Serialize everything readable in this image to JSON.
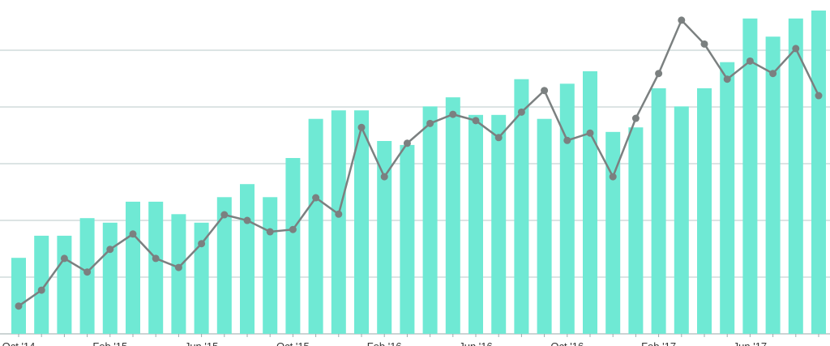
{
  "chart_data": {
    "type": "bar-line",
    "categories": [
      "Oct '14",
      null,
      null,
      null,
      "Feb '15",
      null,
      null,
      null,
      "Jun '15",
      null,
      null,
      null,
      "Oct '15",
      null,
      null,
      null,
      "Feb '16",
      null,
      null,
      null,
      "Jun '16",
      null,
      null,
      null,
      "Oct '16",
      null,
      null,
      null,
      "Feb '17",
      null,
      null,
      null,
      "Jun '17",
      null,
      null,
      null
    ],
    "series": [
      {
        "type": "bar",
        "color": "#6fe9d4",
        "values": [
          1.34,
          1.73,
          1.73,
          2.04,
          1.96,
          2.33,
          2.33,
          2.11,
          1.96,
          2.41,
          2.64,
          2.41,
          3.1,
          3.79,
          3.94,
          3.94,
          3.4,
          3.33,
          4.01,
          4.17,
          3.86,
          3.86,
          4.49,
          3.79,
          4.41,
          4.63,
          3.56,
          3.64,
          4.33,
          4.01,
          4.33,
          4.79,
          5.56,
          5.24,
          5.56,
          5.7
        ]
      },
      {
        "type": "line",
        "color": "#7b8080",
        "values": [
          0.49,
          0.77,
          1.33,
          1.09,
          1.49,
          1.76,
          1.33,
          1.17,
          1.59,
          2.1,
          2.0,
          1.8,
          1.84,
          2.4,
          2.11,
          3.64,
          2.77,
          3.36,
          3.71,
          3.87,
          3.76,
          3.46,
          3.91,
          4.29,
          3.41,
          3.54,
          2.77,
          3.8,
          4.59,
          5.53,
          5.11,
          4.49,
          4.81,
          4.59,
          5.03,
          4.2
        ]
      }
    ],
    "ylim": [
      0,
      5.886
    ],
    "yticks": [
      0,
      1,
      2,
      3,
      4,
      5
    ],
    "grid": true
  }
}
